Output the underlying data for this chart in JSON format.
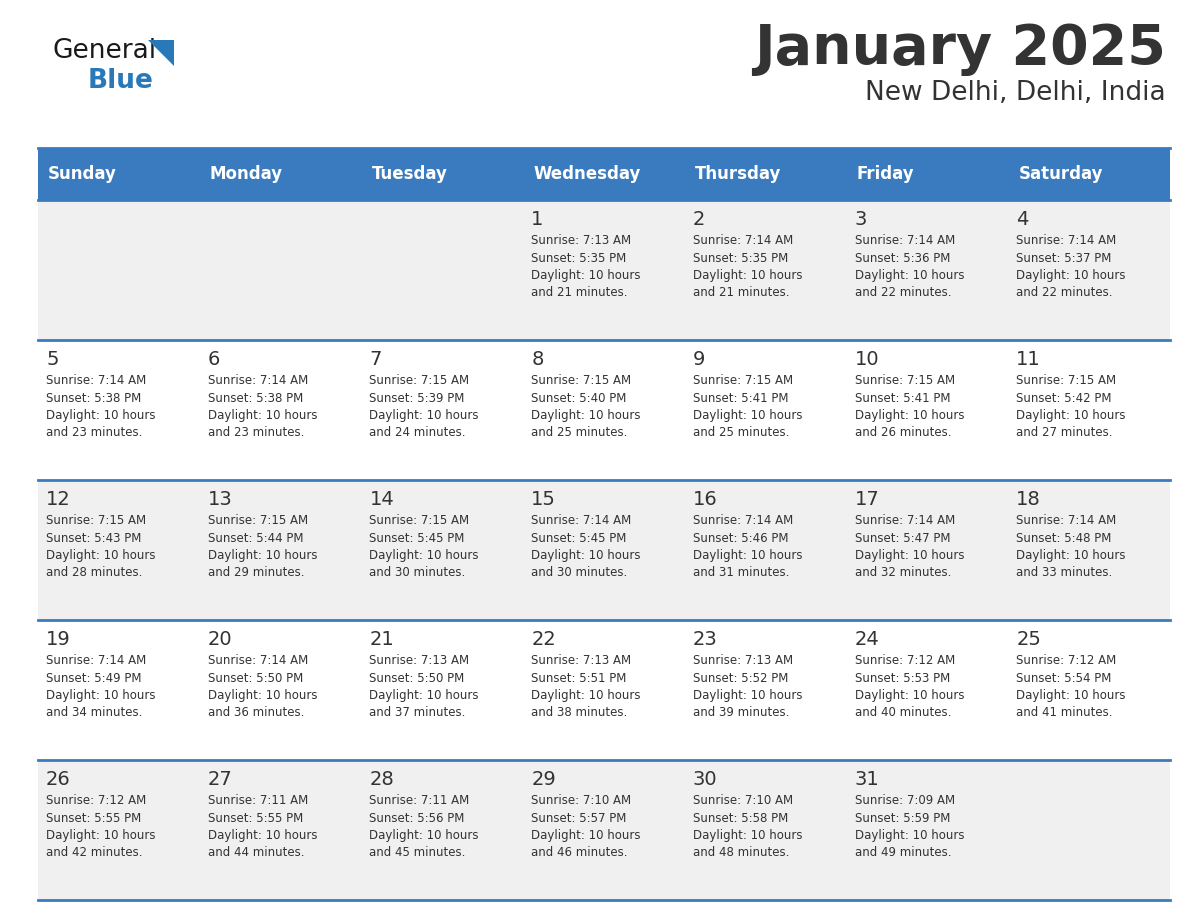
{
  "title": "January 2025",
  "subtitle": "New Delhi, Delhi, India",
  "days_of_week": [
    "Sunday",
    "Monday",
    "Tuesday",
    "Wednesday",
    "Thursday",
    "Friday",
    "Saturday"
  ],
  "header_bg": "#3a7bbf",
  "header_text": "#ffffff",
  "row_bg_odd": "#f0f0f0",
  "row_bg_even": "#ffffff",
  "border_color": "#3a7bbf",
  "text_color": "#333333",
  "day_num_color": "#333333",
  "calendar": [
    [
      {
        "day": null,
        "info": ""
      },
      {
        "day": null,
        "info": ""
      },
      {
        "day": null,
        "info": ""
      },
      {
        "day": 1,
        "info": "Sunrise: 7:13 AM\nSunset: 5:35 PM\nDaylight: 10 hours\nand 21 minutes."
      },
      {
        "day": 2,
        "info": "Sunrise: 7:14 AM\nSunset: 5:35 PM\nDaylight: 10 hours\nand 21 minutes."
      },
      {
        "day": 3,
        "info": "Sunrise: 7:14 AM\nSunset: 5:36 PM\nDaylight: 10 hours\nand 22 minutes."
      },
      {
        "day": 4,
        "info": "Sunrise: 7:14 AM\nSunset: 5:37 PM\nDaylight: 10 hours\nand 22 minutes."
      }
    ],
    [
      {
        "day": 5,
        "info": "Sunrise: 7:14 AM\nSunset: 5:38 PM\nDaylight: 10 hours\nand 23 minutes."
      },
      {
        "day": 6,
        "info": "Sunrise: 7:14 AM\nSunset: 5:38 PM\nDaylight: 10 hours\nand 23 minutes."
      },
      {
        "day": 7,
        "info": "Sunrise: 7:15 AM\nSunset: 5:39 PM\nDaylight: 10 hours\nand 24 minutes."
      },
      {
        "day": 8,
        "info": "Sunrise: 7:15 AM\nSunset: 5:40 PM\nDaylight: 10 hours\nand 25 minutes."
      },
      {
        "day": 9,
        "info": "Sunrise: 7:15 AM\nSunset: 5:41 PM\nDaylight: 10 hours\nand 25 minutes."
      },
      {
        "day": 10,
        "info": "Sunrise: 7:15 AM\nSunset: 5:41 PM\nDaylight: 10 hours\nand 26 minutes."
      },
      {
        "day": 11,
        "info": "Sunrise: 7:15 AM\nSunset: 5:42 PM\nDaylight: 10 hours\nand 27 minutes."
      }
    ],
    [
      {
        "day": 12,
        "info": "Sunrise: 7:15 AM\nSunset: 5:43 PM\nDaylight: 10 hours\nand 28 minutes."
      },
      {
        "day": 13,
        "info": "Sunrise: 7:15 AM\nSunset: 5:44 PM\nDaylight: 10 hours\nand 29 minutes."
      },
      {
        "day": 14,
        "info": "Sunrise: 7:15 AM\nSunset: 5:45 PM\nDaylight: 10 hours\nand 30 minutes."
      },
      {
        "day": 15,
        "info": "Sunrise: 7:14 AM\nSunset: 5:45 PM\nDaylight: 10 hours\nand 30 minutes."
      },
      {
        "day": 16,
        "info": "Sunrise: 7:14 AM\nSunset: 5:46 PM\nDaylight: 10 hours\nand 31 minutes."
      },
      {
        "day": 17,
        "info": "Sunrise: 7:14 AM\nSunset: 5:47 PM\nDaylight: 10 hours\nand 32 minutes."
      },
      {
        "day": 18,
        "info": "Sunrise: 7:14 AM\nSunset: 5:48 PM\nDaylight: 10 hours\nand 33 minutes."
      }
    ],
    [
      {
        "day": 19,
        "info": "Sunrise: 7:14 AM\nSunset: 5:49 PM\nDaylight: 10 hours\nand 34 minutes."
      },
      {
        "day": 20,
        "info": "Sunrise: 7:14 AM\nSunset: 5:50 PM\nDaylight: 10 hours\nand 36 minutes."
      },
      {
        "day": 21,
        "info": "Sunrise: 7:13 AM\nSunset: 5:50 PM\nDaylight: 10 hours\nand 37 minutes."
      },
      {
        "day": 22,
        "info": "Sunrise: 7:13 AM\nSunset: 5:51 PM\nDaylight: 10 hours\nand 38 minutes."
      },
      {
        "day": 23,
        "info": "Sunrise: 7:13 AM\nSunset: 5:52 PM\nDaylight: 10 hours\nand 39 minutes."
      },
      {
        "day": 24,
        "info": "Sunrise: 7:12 AM\nSunset: 5:53 PM\nDaylight: 10 hours\nand 40 minutes."
      },
      {
        "day": 25,
        "info": "Sunrise: 7:12 AM\nSunset: 5:54 PM\nDaylight: 10 hours\nand 41 minutes."
      }
    ],
    [
      {
        "day": 26,
        "info": "Sunrise: 7:12 AM\nSunset: 5:55 PM\nDaylight: 10 hours\nand 42 minutes."
      },
      {
        "day": 27,
        "info": "Sunrise: 7:11 AM\nSunset: 5:55 PM\nDaylight: 10 hours\nand 44 minutes."
      },
      {
        "day": 28,
        "info": "Sunrise: 7:11 AM\nSunset: 5:56 PM\nDaylight: 10 hours\nand 45 minutes."
      },
      {
        "day": 29,
        "info": "Sunrise: 7:10 AM\nSunset: 5:57 PM\nDaylight: 10 hours\nand 46 minutes."
      },
      {
        "day": 30,
        "info": "Sunrise: 7:10 AM\nSunset: 5:58 PM\nDaylight: 10 hours\nand 48 minutes."
      },
      {
        "day": 31,
        "info": "Sunrise: 7:09 AM\nSunset: 5:59 PM\nDaylight: 10 hours\nand 49 minutes."
      },
      {
        "day": null,
        "info": ""
      }
    ]
  ],
  "logo_color_general": "#1a1a1a",
  "logo_color_blue": "#2979b8",
  "logo_triangle_color": "#2979b8",
  "fig_width": 11.88,
  "fig_height": 9.18,
  "dpi": 100
}
